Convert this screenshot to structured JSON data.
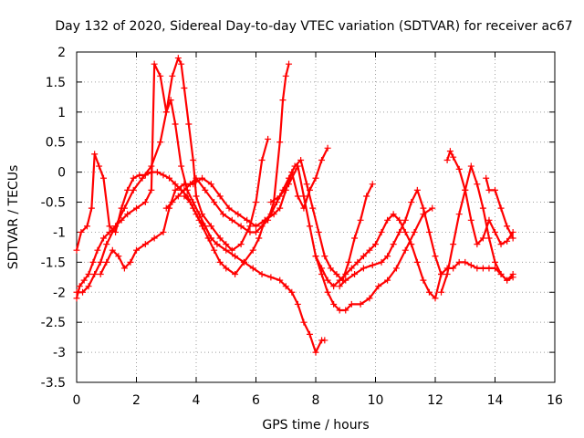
{
  "chart_data": {
    "type": "scatter",
    "title": "Day 132 of 2020, Sidereal Day-to-day VTEC variation (SDTVAR) for receiver ac67",
    "xlabel": "GPS time / hours",
    "ylabel": "SDTVAR / TECUs",
    "xlim": [
      0,
      16
    ],
    "ylim": [
      -3.5,
      2
    ],
    "x_ticks": [
      0,
      2,
      4,
      6,
      8,
      10,
      12,
      14,
      16
    ],
    "y_ticks": [
      -3.5,
      -3,
      -2.5,
      -2,
      -1.5,
      -1,
      -0.5,
      0,
      0.5,
      1,
      1.5,
      2
    ],
    "x_tick_labels": [
      "0",
      "2",
      "4",
      "6",
      "8",
      "10",
      "12",
      "14",
      "16"
    ],
    "y_tick_labels": [
      "-3.5",
      "-3",
      "-2.5",
      "-2",
      "-1.5",
      "-1",
      "-0.5",
      "0",
      "0.5",
      "1",
      "1.5",
      "2"
    ],
    "grid": true,
    "marker": "+",
    "color": "#ff0000",
    "series": [
      {
        "name": "s1",
        "x": [
          0.0,
          0.15,
          0.35,
          0.5,
          0.6,
          0.75,
          0.9,
          1.1,
          1.3,
          1.5,
          1.7,
          1.9,
          2.1,
          2.3,
          2.5,
          2.7,
          2.9,
          3.1,
          3.3,
          3.5,
          3.7,
          3.9,
          4.1,
          4.3,
          4.5
        ],
        "y": [
          -1.3,
          -1.0,
          -0.9,
          -0.6,
          0.3,
          0.1,
          -0.1,
          -0.9,
          -1.0,
          -0.6,
          -0.3,
          -0.1,
          -0.05,
          -0.05,
          0.0,
          0.0,
          -0.05,
          -0.1,
          -0.2,
          -0.3,
          -0.4,
          -0.6,
          -0.8,
          -0.9,
          -1.1
        ]
      },
      {
        "name": "s2",
        "x": [
          0.0,
          0.1,
          0.25,
          0.4,
          0.55,
          0.7,
          0.9,
          1.1,
          1.3,
          1.5,
          1.7,
          2.0,
          2.3,
          2.5,
          2.6,
          2.8,
          3.0,
          3.15,
          3.3,
          3.5,
          3.7,
          3.9,
          4.1,
          4.3,
          4.5,
          4.7,
          5.0,
          5.3,
          5.6,
          5.9,
          6.2,
          6.5,
          6.8,
          7.0,
          7.2,
          7.4,
          7.6,
          7.8,
          8.0,
          8.2,
          8.3
        ],
        "y": [
          -2.1,
          -1.9,
          -1.8,
          -1.7,
          -1.5,
          -1.3,
          -1.1,
          -1.0,
          -0.9,
          -0.8,
          -0.7,
          -0.6,
          -0.5,
          -0.3,
          1.8,
          1.6,
          1.0,
          1.2,
          0.8,
          0.1,
          -0.3,
          -0.5,
          -0.7,
          -0.9,
          -1.1,
          -1.2,
          -1.3,
          -1.4,
          -1.5,
          -1.6,
          -1.7,
          -1.75,
          -1.8,
          -1.9,
          -2.0,
          -2.2,
          -2.5,
          -2.7,
          -3.0,
          -2.8,
          -2.8
        ]
      },
      {
        "name": "s3",
        "x": [
          0.0,
          0.2,
          0.4,
          0.6,
          0.8,
          1.0,
          1.3,
          1.6,
          1.9,
          2.2,
          2.5,
          2.8,
          3.0,
          3.2,
          3.4,
          3.5,
          3.6,
          3.75,
          3.9,
          4.0,
          4.2,
          4.5,
          4.8,
          5.0,
          5.2,
          5.5,
          5.8,
          6.0,
          6.2,
          6.4
        ],
        "y": [
          -2.0,
          -2.0,
          -1.9,
          -1.7,
          -1.5,
          -1.2,
          -0.9,
          -0.6,
          -0.3,
          -0.1,
          0.1,
          0.5,
          1.0,
          1.6,
          1.9,
          1.8,
          1.4,
          0.8,
          0.2,
          -0.4,
          -0.7,
          -0.9,
          -1.1,
          -1.2,
          -1.3,
          -1.2,
          -0.9,
          -0.5,
          0.2,
          0.55
        ]
      },
      {
        "name": "s4",
        "x": [
          0.8,
          1.0,
          1.2,
          1.4,
          1.6,
          1.8,
          2.0,
          2.3,
          2.6,
          2.9,
          3.1,
          3.3,
          3.6,
          3.9,
          4.2,
          4.5,
          4.8,
          5.1,
          5.4,
          5.7,
          6.0,
          6.3,
          6.6,
          6.8,
          7.0,
          7.2,
          7.4,
          7.6,
          7.8,
          8.0,
          8.2,
          8.4
        ],
        "y": [
          -1.7,
          -1.5,
          -1.3,
          -1.4,
          -1.6,
          -1.5,
          -1.3,
          -1.2,
          -1.1,
          -1.0,
          -0.6,
          -0.3,
          -0.2,
          -0.2,
          -0.1,
          -0.2,
          -0.4,
          -0.6,
          -0.7,
          -0.8,
          -0.9,
          -0.8,
          -0.7,
          -0.6,
          -0.3,
          0.0,
          -0.4,
          -0.6,
          -0.3,
          -0.1,
          0.2,
          0.4
        ]
      },
      {
        "name": "s5",
        "x": [
          3.0,
          3.2,
          3.4,
          3.6,
          3.8,
          4.0,
          4.3,
          4.6,
          4.9,
          5.2,
          5.5,
          5.8,
          6.0,
          6.2,
          6.4,
          6.6,
          6.8,
          6.9,
          7.0,
          7.1
        ],
        "y": [
          -0.6,
          -0.5,
          -0.4,
          -0.3,
          -0.2,
          -0.1,
          -0.3,
          -0.5,
          -0.7,
          -0.8,
          -0.9,
          -1.0,
          -1.0,
          -0.9,
          -0.8,
          -0.5,
          0.5,
          1.2,
          1.6,
          1.8
        ]
      },
      {
        "name": "s6",
        "x": [
          3.6,
          3.8,
          4.0,
          4.2,
          4.4,
          4.6,
          4.8,
          5.0,
          5.3,
          5.6,
          5.9,
          6.1,
          6.3,
          6.5,
          6.7,
          6.9,
          7.1,
          7.3,
          7.5,
          7.7,
          7.9,
          8.1,
          8.3,
          8.5,
          8.7,
          8.9,
          9.1,
          9.3,
          9.5,
          9.7,
          9.9
        ],
        "y": [
          -0.4,
          -0.5,
          -0.7,
          -0.9,
          -1.1,
          -1.3,
          -1.5,
          -1.6,
          -1.7,
          -1.5,
          -1.3,
          -1.1,
          -0.8,
          -0.7,
          -0.5,
          -0.3,
          -0.1,
          0.1,
          0.2,
          -0.2,
          -0.6,
          -1.0,
          -1.4,
          -1.6,
          -1.7,
          -1.8,
          -1.5,
          -1.1,
          -0.8,
          -0.4,
          -0.2
        ]
      },
      {
        "name": "s7",
        "x": [
          6.5,
          6.8,
          7.1,
          7.4,
          7.6,
          7.8,
          8.0,
          8.2,
          8.4,
          8.6,
          8.8,
          9.0,
          9.2,
          9.5,
          9.8,
          10.1,
          10.4,
          10.7,
          11.0,
          11.3,
          11.6,
          11.9
        ],
        "y": [
          -0.5,
          -0.4,
          -0.2,
          0.1,
          -0.4,
          -0.9,
          -1.4,
          -1.7,
          -2.0,
          -2.2,
          -2.3,
          -2.3,
          -2.2,
          -2.2,
          -2.1,
          -1.9,
          -1.8,
          -1.6,
          -1.3,
          -1.0,
          -0.7,
          -0.6
        ]
      },
      {
        "name": "s8",
        "x": [
          8.0,
          8.2,
          8.4,
          8.6,
          8.8,
          9.0,
          9.2,
          9.4,
          9.6,
          9.8,
          10.0,
          10.2,
          10.4,
          10.6,
          10.8,
          11.0,
          11.2,
          11.4,
          11.6,
          11.8,
          12.0,
          12.2,
          12.4,
          12.6,
          12.8,
          13.0,
          13.2,
          13.4,
          13.6,
          13.8,
          14.0,
          14.2,
          14.4,
          14.6
        ],
        "y": [
          -1.4,
          -1.6,
          -1.8,
          -1.9,
          -1.8,
          -1.7,
          -1.6,
          -1.5,
          -1.4,
          -1.3,
          -1.2,
          -1.0,
          -0.8,
          -0.7,
          -0.8,
          -1.0,
          -1.2,
          -1.5,
          -1.8,
          -2.0,
          -2.1,
          -1.7,
          -1.6,
          -1.6,
          -1.5,
          -1.5,
          -1.55,
          -1.6,
          -1.6,
          -1.6,
          -1.6,
          -1.7,
          -1.8,
          -1.75
        ]
      },
      {
        "name": "s9",
        "x": [
          8.8,
          9.0,
          9.3,
          9.6,
          9.9,
          10.2,
          10.4,
          10.6,
          10.8,
          11.0,
          11.2,
          11.4,
          11.6,
          11.8,
          12.0,
          12.2
        ],
        "y": [
          -1.9,
          -1.8,
          -1.7,
          -1.6,
          -1.55,
          -1.5,
          -1.4,
          -1.2,
          -1.0,
          -0.8,
          -0.5,
          -0.3,
          -0.6,
          -1.0,
          -1.4,
          -1.7
        ]
      },
      {
        "name": "s10",
        "x": [
          12.2,
          12.4,
          12.6,
          12.8,
          13.0,
          13.2,
          13.4,
          13.6,
          13.8,
          14.0,
          14.2,
          14.4,
          14.6
        ],
        "y": [
          -2.0,
          -1.7,
          -1.2,
          -0.7,
          -0.3,
          0.1,
          -0.2,
          -0.6,
          -1.1,
          -1.5,
          -1.7,
          -1.8,
          -1.7
        ]
      },
      {
        "name": "s11",
        "x": [
          12.4,
          12.5,
          12.6,
          12.8,
          13.0,
          13.2,
          13.4,
          13.6,
          13.8,
          14.0,
          14.2,
          14.4,
          14.6
        ],
        "y": [
          0.2,
          0.35,
          0.25,
          0.05,
          -0.3,
          -0.8,
          -1.2,
          -1.1,
          -0.8,
          -1.0,
          -1.2,
          -1.15,
          -1.0
        ]
      },
      {
        "name": "s12",
        "x": [
          13.7,
          13.8,
          14.0,
          14.2,
          14.4,
          14.6
        ],
        "y": [
          -0.1,
          -0.3,
          -0.3,
          -0.6,
          -0.9,
          -1.1
        ]
      }
    ]
  }
}
